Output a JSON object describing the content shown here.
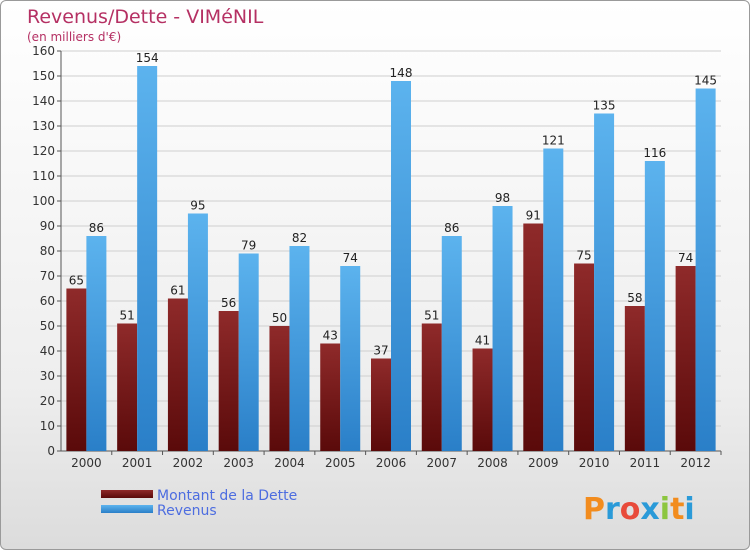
{
  "chart_data": {
    "type": "bar",
    "title": "Revenus/Dette - VIMéNIL",
    "subtitle": "(en milliers d'€)",
    "categories": [
      "2000",
      "2001",
      "2002",
      "2003",
      "2004",
      "2005",
      "2006",
      "2007",
      "2008",
      "2009",
      "2010",
      "2011",
      "2012"
    ],
    "series": [
      {
        "name": "Montant de la Dette",
        "values": [
          65,
          51,
          61,
          56,
          50,
          43,
          37,
          51,
          41,
          91,
          75,
          58,
          74
        ],
        "color": "#7a1a1a"
      },
      {
        "name": "Revenus",
        "values": [
          86,
          154,
          95,
          79,
          82,
          74,
          148,
          86,
          98,
          121,
          135,
          116,
          145
        ],
        "color": "#4aa3e6"
      }
    ],
    "ylim": [
      0,
      160
    ],
    "ytick_step": 10,
    "grid": true,
    "legend": "bottom-left"
  },
  "logo": {
    "letters": [
      "P",
      "r",
      "o",
      "x",
      "i",
      "t",
      "i"
    ],
    "colors": [
      "#f28c1e",
      "#2a9ad8",
      "#e84a3a",
      "#2a9ad8",
      "#8cc63f",
      "#f28c1e",
      "#2a9ad8"
    ]
  }
}
